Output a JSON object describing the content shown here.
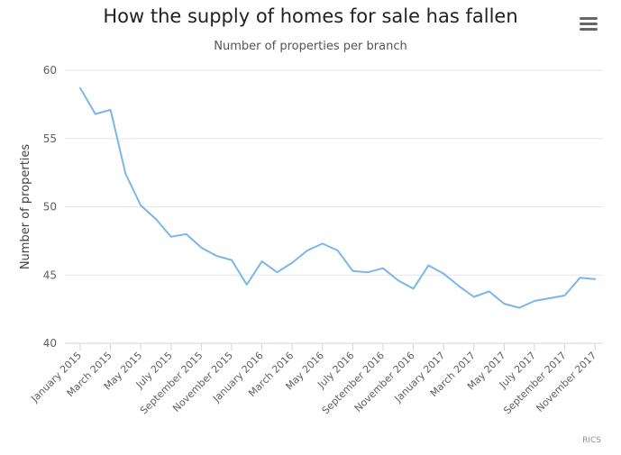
{
  "header": {
    "title": "How the supply of homes for sale has fallen",
    "subtitle": "Number of properties per branch"
  },
  "menu": {
    "icon": "hamburger-menu-icon"
  },
  "credit": "RICS",
  "colors": {
    "series": "#7cb5ec",
    "grid": "#e6e6e6",
    "axis": "#ccd6eb"
  },
  "chart_data": {
    "type": "line",
    "title": "How the supply of homes for sale has fallen",
    "subtitle": "Number of properties per branch",
    "xlabel": "",
    "ylabel": "Number of properties",
    "ylim": [
      40,
      60
    ],
    "yticks": [
      40,
      45,
      50,
      55,
      60
    ],
    "grid": true,
    "x": [
      "January 2015",
      "February 2015",
      "March 2015",
      "April 2015",
      "May 2015",
      "June 2015",
      "July 2015",
      "August 2015",
      "September 2015",
      "October 2015",
      "November 2015",
      "December 2015",
      "January 2016",
      "February 2016",
      "March 2016",
      "April 2016",
      "May 2016",
      "June 2016",
      "July 2016",
      "August 2016",
      "September 2016",
      "October 2016",
      "November 2016",
      "December 2016",
      "January 2017",
      "February 2017",
      "March 2017",
      "April 2017",
      "May 2017",
      "June 2017",
      "July 2017",
      "August 2017",
      "September 2017",
      "October 2017",
      "November 2017"
    ],
    "xtick_labels": [
      "January 2015",
      "March 2015",
      "May 2015",
      "July 2015",
      "September 2015",
      "November 2015",
      "January 2016",
      "March 2016",
      "May 2016",
      "July 2016",
      "September 2016",
      "November 2016",
      "January 2017",
      "March 2017",
      "May 2017",
      "July 2017",
      "September 2017",
      "November 2017"
    ],
    "series": [
      {
        "values": [
          58.7,
          56.8,
          57.1,
          52.4,
          50.1,
          49.1,
          47.8,
          48.0,
          47.0,
          46.4,
          46.1,
          44.3,
          46.0,
          45.2,
          45.9,
          46.8,
          47.3,
          46.8,
          45.3,
          45.2,
          45.5,
          44.6,
          44.0,
          45.7,
          45.1,
          44.2,
          43.4,
          43.8,
          42.9,
          42.6,
          43.1,
          43.3,
          43.5,
          44.8,
          44.7
        ]
      }
    ]
  }
}
